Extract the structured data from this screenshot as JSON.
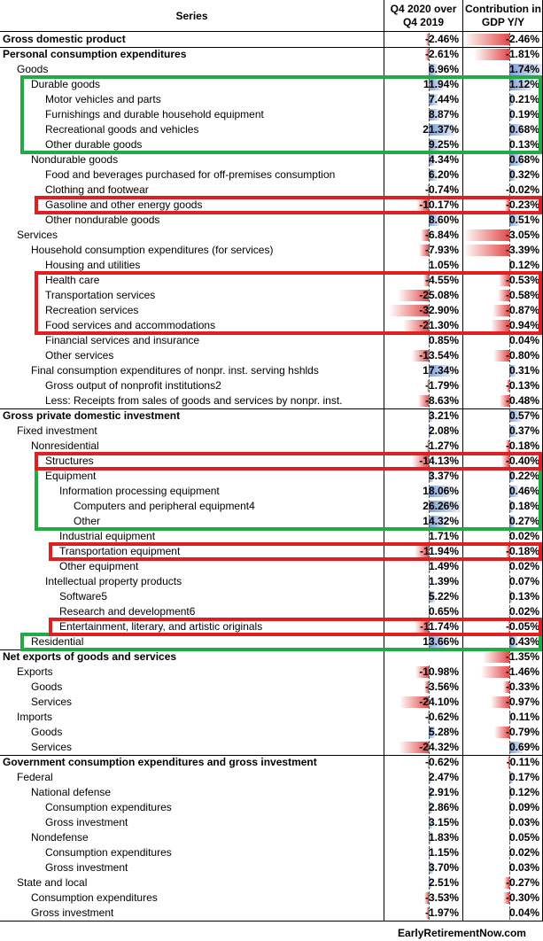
{
  "headers": {
    "series": "Series",
    "growth": "Q4 2020 over Q4 2019",
    "contribution": "Contribution in GDP Y/Y"
  },
  "footer": "EarlyRetirementNow.com",
  "colors": {
    "positive": "#7f9fd4",
    "negative": "#e24a4a",
    "green_box": "#22aa44",
    "red_box": "#e02020"
  },
  "chart_data": {
    "type": "table",
    "columns": [
      "Series",
      "Q4 2020 over Q4 2019",
      "Contribution in GDP Y/Y"
    ],
    "rows": [
      {
        "label": "Gross domestic product",
        "indent": 0,
        "bold": true,
        "growth": "-2.46%",
        "contribution": "-2.46%"
      },
      {
        "label": "Personal consumption expenditures",
        "indent": 0,
        "bold": true,
        "growth": "-2.61%",
        "contribution": "-1.81%"
      },
      {
        "label": "Goods",
        "indent": 1,
        "growth": "6.96%",
        "contribution": "1.74%"
      },
      {
        "label": "Durable goods",
        "indent": 2,
        "growth": "11.94%",
        "contribution": "1.12%"
      },
      {
        "label": "Motor vehicles and parts",
        "indent": 3,
        "growth": "7.44%",
        "contribution": "0.21%"
      },
      {
        "label": "Furnishings and durable household equipment",
        "indent": 3,
        "growth": "8.87%",
        "contribution": "0.19%"
      },
      {
        "label": "Recreational goods and vehicles",
        "indent": 3,
        "growth": "21.37%",
        "contribution": "0.68%"
      },
      {
        "label": "Other durable goods",
        "indent": 3,
        "growth": "9.25%",
        "contribution": "0.13%"
      },
      {
        "label": "Nondurable goods",
        "indent": 2,
        "growth": "4.34%",
        "contribution": "0.68%"
      },
      {
        "label": "Food and beverages purchased for off-premises consumption",
        "indent": 3,
        "growth": "6.20%",
        "contribution": "0.32%"
      },
      {
        "label": "Clothing and footwear",
        "indent": 3,
        "growth": "-0.74%",
        "contribution": "-0.02%"
      },
      {
        "label": "Gasoline and other energy goods",
        "indent": 3,
        "growth": "-10.17%",
        "contribution": "-0.23%"
      },
      {
        "label": "Other nondurable goods",
        "indent": 3,
        "growth": "8.60%",
        "contribution": "0.51%"
      },
      {
        "label": "Services",
        "indent": 1,
        "growth": "-6.84%",
        "contribution": "-3.05%"
      },
      {
        "label": "Household consumption expenditures (for services)",
        "indent": 2,
        "growth": "-7.93%",
        "contribution": "-3.39%"
      },
      {
        "label": "Housing and utilities",
        "indent": 3,
        "growth": "1.05%",
        "contribution": "0.12%"
      },
      {
        "label": "Health care",
        "indent": 3,
        "growth": "-4.55%",
        "contribution": "-0.53%"
      },
      {
        "label": "Transportation services",
        "indent": 3,
        "growth": "-25.08%",
        "contribution": "-0.58%"
      },
      {
        "label": "Recreation services",
        "indent": 3,
        "growth": "-32.90%",
        "contribution": "-0.87%"
      },
      {
        "label": "Food services and accommodations",
        "indent": 3,
        "growth": "-21.30%",
        "contribution": "-0.94%"
      },
      {
        "label": "Financial services and insurance",
        "indent": 3,
        "growth": "0.85%",
        "contribution": "0.04%"
      },
      {
        "label": "Other services",
        "indent": 3,
        "growth": "-13.54%",
        "contribution": "-0.80%"
      },
      {
        "label": "Final consumption expenditures of nonpr. inst. serving hshlds",
        "indent": 2,
        "growth": "17.34%",
        "contribution": "0.31%"
      },
      {
        "label": "Gross output of nonprofit institutions2",
        "indent": 3,
        "growth": "-1.79%",
        "contribution": "-0.13%"
      },
      {
        "label": "Less: Receipts from sales of goods and services by nonpr. inst.",
        "indent": 3,
        "growth": "-8.63%",
        "contribution": "-0.48%"
      },
      {
        "label": "Gross private domestic investment",
        "indent": 0,
        "bold": true,
        "growth": "3.21%",
        "contribution": "0.57%"
      },
      {
        "label": "Fixed investment",
        "indent": 1,
        "growth": "2.08%",
        "contribution": "0.37%"
      },
      {
        "label": "Nonresidential",
        "indent": 2,
        "growth": "-1.27%",
        "contribution": "-0.18%"
      },
      {
        "label": "Structures",
        "indent": 3,
        "growth": "-14.13%",
        "contribution": "-0.40%"
      },
      {
        "label": "Equipment",
        "indent": 3,
        "growth": "3.37%",
        "contribution": "0.22%"
      },
      {
        "label": "Information processing equipment",
        "indent": 4,
        "growth": "18.06%",
        "contribution": "0.46%"
      },
      {
        "label": "Computers and peripheral equipment4",
        "indent": 5,
        "growth": "26.26%",
        "contribution": "0.18%"
      },
      {
        "label": "Other",
        "indent": 5,
        "growth": "14.32%",
        "contribution": "0.27%"
      },
      {
        "label": "Industrial equipment",
        "indent": 4,
        "growth": "1.71%",
        "contribution": "0.02%"
      },
      {
        "label": "Transportation equipment",
        "indent": 4,
        "growth": "-11.94%",
        "contribution": "-0.18%"
      },
      {
        "label": "Other equipment",
        "indent": 4,
        "growth": "1.49%",
        "contribution": "0.02%"
      },
      {
        "label": "Intellectual property products",
        "indent": 3,
        "growth": "1.39%",
        "contribution": "0.07%"
      },
      {
        "label": "Software5",
        "indent": 4,
        "growth": "5.22%",
        "contribution": "0.13%"
      },
      {
        "label": "Research and development6",
        "indent": 4,
        "growth": "0.65%",
        "contribution": "0.02%"
      },
      {
        "label": "Entertainment, literary, and artistic originals",
        "indent": 4,
        "growth": "-11.74%",
        "contribution": "-0.05%"
      },
      {
        "label": "Residential",
        "indent": 2,
        "growth": "13.66%",
        "contribution": "0.43%"
      },
      {
        "label": "Net exports of goods and services",
        "indent": 0,
        "bold": true,
        "growth": "",
        "contribution": "-1.35%"
      },
      {
        "label": "Exports",
        "indent": 1,
        "growth": "-10.98%",
        "contribution": "-1.46%"
      },
      {
        "label": "Goods",
        "indent": 2,
        "growth": "-3.56%",
        "contribution": "-0.33%"
      },
      {
        "label": "Services",
        "indent": 2,
        "growth": "-24.10%",
        "contribution": "-0.97%"
      },
      {
        "label": "Imports",
        "indent": 1,
        "growth": "-0.62%",
        "contribution": "0.11%"
      },
      {
        "label": "Goods",
        "indent": 2,
        "growth": "5.28%",
        "contribution": "-0.79%"
      },
      {
        "label": "Services",
        "indent": 2,
        "growth": "-24.32%",
        "contribution": "0.69%"
      },
      {
        "label": "Government consumption expenditures and gross investment",
        "indent": 0,
        "bold": true,
        "growth": "-0.62%",
        "contribution": "-0.11%"
      },
      {
        "label": "Federal",
        "indent": 1,
        "growth": "2.47%",
        "contribution": "0.17%"
      },
      {
        "label": "National defense",
        "indent": 2,
        "growth": "2.91%",
        "contribution": "0.12%"
      },
      {
        "label": "Consumption expenditures",
        "indent": 3,
        "growth": "2.86%",
        "contribution": "0.09%"
      },
      {
        "label": "Gross investment",
        "indent": 3,
        "growth": "3.15%",
        "contribution": "0.03%"
      },
      {
        "label": "Nondefense",
        "indent": 2,
        "growth": "1.83%",
        "contribution": "0.05%"
      },
      {
        "label": "Consumption expenditures",
        "indent": 3,
        "growth": "1.15%",
        "contribution": "0.02%"
      },
      {
        "label": "Gross investment",
        "indent": 3,
        "growth": "3.70%",
        "contribution": "0.03%"
      },
      {
        "label": "State and local",
        "indent": 1,
        "growth": "2.51%",
        "contribution": "-0.27%"
      },
      {
        "label": "Consumption expenditures",
        "indent": 2,
        "growth": "-3.53%",
        "contribution": "-0.30%"
      },
      {
        "label": "Gross investment",
        "indent": 2,
        "growth": "-1.97%",
        "contribution": "0.04%"
      }
    ],
    "highlights": {
      "green": [
        [
          3,
          7
        ],
        [
          29,
          32
        ],
        [
          40,
          40
        ]
      ],
      "red": [
        [
          11,
          11
        ],
        [
          16,
          19
        ],
        [
          28,
          28
        ],
        [
          34,
          34
        ],
        [
          39,
          39
        ]
      ]
    }
  }
}
